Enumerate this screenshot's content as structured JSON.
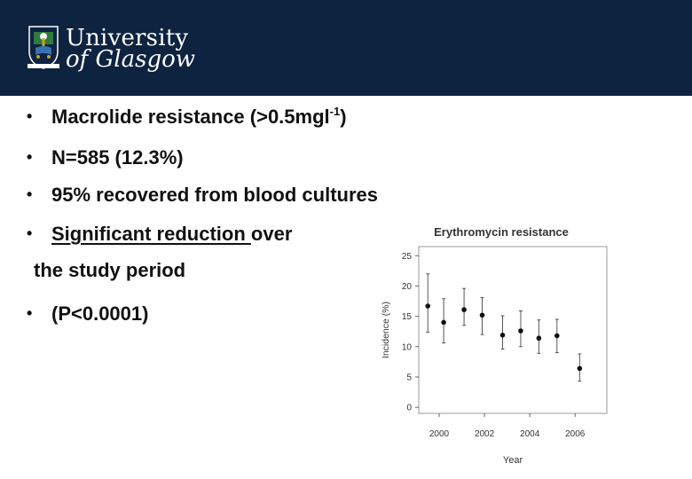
{
  "header": {
    "logo_line1": "University",
    "logo_line2": "of Glasgow",
    "crest_motto": "VIA VERITAS VITA"
  },
  "bullets": {
    "b1_main": "Macrolide resistance (>0.5mgl",
    "b1_sup": "-1",
    "b1_end": ")",
    "b2": "N=585 (12.3%)",
    "b3": "95% recovered from blood cultures",
    "b4_underlined": "Significant reduction ",
    "b4_rest": "over",
    "b4_cont": "the study period",
    "b5": "(P<0.0001)"
  },
  "chart_data": {
    "type": "scatter",
    "title": "Erythromycin resistance",
    "xlabel": "Year",
    "ylabel": "Incidence (%)",
    "xlim": [
      1999.1,
      2007.4
    ],
    "ylim": [
      -1,
      26.5
    ],
    "xticks": [
      2000,
      2002,
      2004,
      2006
    ],
    "yticks": [
      0,
      5,
      10,
      15,
      20,
      25
    ],
    "error_bars": true,
    "series": [
      {
        "x": [
          1999.5,
          2000.2,
          2001.1,
          2001.9,
          2002.8,
          2003.6,
          2004.4,
          2005.2,
          2006.2
        ],
        "y": [
          16.7,
          14.0,
          16.1,
          15.2,
          11.9,
          12.6,
          11.4,
          11.8,
          6.4
        ],
        "lower": [
          12.4,
          10.6,
          13.5,
          12.0,
          9.6,
          10.0,
          8.9,
          9.0,
          4.3
        ],
        "upper": [
          22.0,
          17.9,
          19.6,
          18.1,
          15.1,
          15.9,
          14.4,
          14.5,
          8.8
        ]
      }
    ]
  }
}
